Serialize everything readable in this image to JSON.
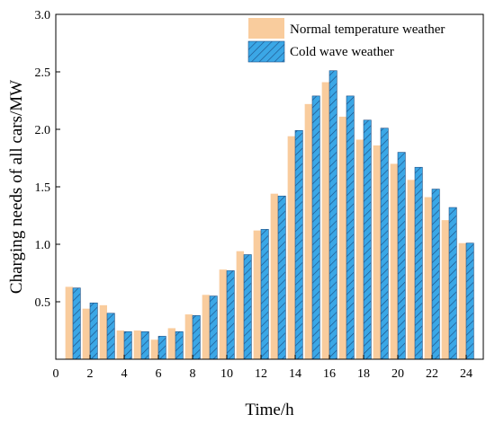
{
  "chart_data": {
    "type": "bar",
    "xlabel": "Time/h",
    "ylabel": "Charging needs of all cars/MW",
    "xlim": [
      0,
      25
    ],
    "ylim": [
      0,
      3.0
    ],
    "xticks": [
      0,
      2,
      4,
      6,
      8,
      10,
      12,
      14,
      16,
      18,
      20,
      22,
      24
    ],
    "xtick_labels": [
      "0",
      "2",
      "4",
      "6",
      "8",
      "10",
      "12",
      "14",
      "16",
      "18",
      "20",
      "22",
      "24"
    ],
    "yticks": [
      0.5,
      1.0,
      1.5,
      2.0,
      2.5,
      3.0
    ],
    "ytick_labels": [
      "0.5",
      "1.0",
      "1.5",
      "2.0",
      "2.5",
      "3.0"
    ],
    "x": [
      1,
      2,
      3,
      4,
      5,
      6,
      7,
      8,
      9,
      10,
      11,
      12,
      13,
      14,
      15,
      16,
      17,
      18,
      19,
      20,
      21,
      22,
      23,
      24
    ],
    "series": [
      {
        "name": "Normal temperature weather",
        "color": "#f9cc9d",
        "pattern": "solid",
        "values": [
          0.63,
          0.44,
          0.47,
          0.25,
          0.25,
          0.17,
          0.27,
          0.39,
          0.56,
          0.78,
          0.94,
          1.12,
          1.44,
          1.94,
          2.22,
          2.41,
          2.11,
          1.91,
          1.86,
          1.7,
          1.56,
          1.41,
          1.21,
          1.01
        ]
      },
      {
        "name": "Cold wave weather",
        "color": "#3ba7e6",
        "pattern": "hatched",
        "values": [
          0.62,
          0.49,
          0.4,
          0.24,
          0.24,
          0.2,
          0.24,
          0.38,
          0.55,
          0.77,
          0.91,
          1.13,
          1.42,
          1.99,
          2.29,
          2.51,
          2.29,
          2.08,
          2.01,
          1.8,
          1.67,
          1.48,
          1.32,
          1.01
        ]
      }
    ],
    "legend_position": "top-right",
    "grid": false
  }
}
